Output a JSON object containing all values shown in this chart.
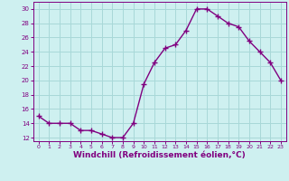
{
  "x": [
    0,
    1,
    2,
    3,
    4,
    5,
    6,
    7,
    8,
    9,
    10,
    11,
    12,
    13,
    14,
    15,
    16,
    17,
    18,
    19,
    20,
    21,
    22,
    23
  ],
  "y": [
    15,
    14,
    14,
    14,
    13,
    13,
    12.5,
    12,
    12,
    14,
    19.5,
    22.5,
    24.5,
    25,
    27,
    30,
    30,
    29,
    28,
    27.5,
    25.5,
    24,
    22.5,
    20
  ],
  "line_color": "#800080",
  "marker": "+",
  "marker_size": 4,
  "linewidth": 1.0,
  "bg_color": "#cef0f0",
  "grid_color": "#a8d8d8",
  "axis_color": "#800080",
  "tick_color": "#800080",
  "xlabel": "Windchill (Refroidissement éolien,°C)",
  "xlabel_fontsize": 6.5,
  "xlabel_color": "#800080",
  "yticks": [
    12,
    14,
    16,
    18,
    20,
    22,
    24,
    26,
    28,
    30
  ],
  "xticks": [
    0,
    1,
    2,
    3,
    4,
    5,
    6,
    7,
    8,
    9,
    10,
    11,
    12,
    13,
    14,
    15,
    16,
    17,
    18,
    19,
    20,
    21,
    22,
    23
  ],
  "ylim": [
    11.5,
    31
  ],
  "xlim": [
    -0.5,
    23.5
  ]
}
